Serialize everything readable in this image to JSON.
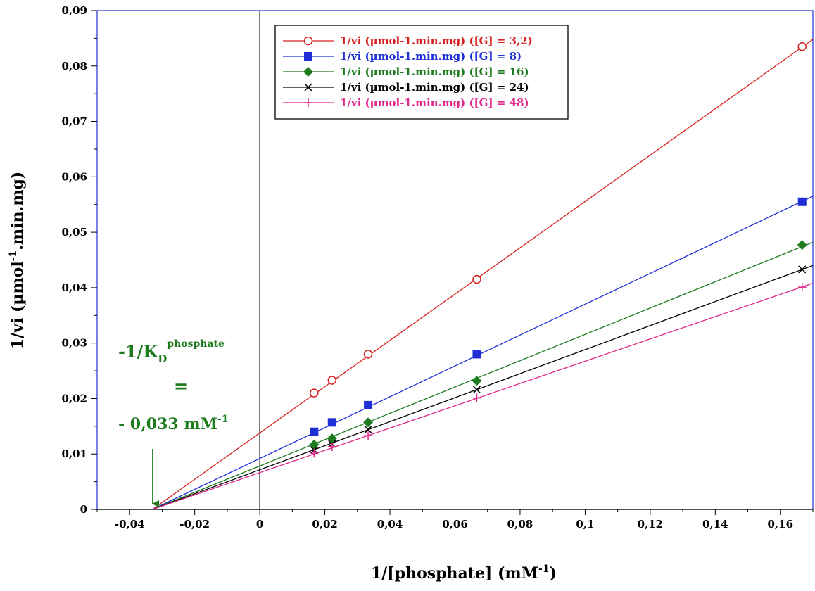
{
  "chart_data": {
    "type": "line",
    "xlabel": "1/[phosphate] (mM",
    "xlabel_sup": "-1",
    "xlabel_end": ")",
    "ylabel": "1/vi (µmol",
    "ylabel_sup": "-1",
    "ylabel_end": ".min.mg)",
    "xlim": [
      -0.05,
      0.17
    ],
    "ylim": [
      0,
      0.09
    ],
    "x_ticks": [
      -0.04,
      -0.02,
      0,
      0.02,
      0.04,
      0.06,
      0.08,
      0.1,
      0.12,
      0.14,
      0.16
    ],
    "x_tick_labels": [
      "-0,04",
      "-0,02",
      "0",
      "0,02",
      "0,04",
      "0,06",
      "0,08",
      "0,1",
      "0,12",
      "0,14",
      "0,16"
    ],
    "y_ticks": [
      0,
      0.01,
      0.02,
      0.03,
      0.04,
      0.05,
      0.06,
      0.07,
      0.08,
      0.09
    ],
    "y_tick_labels": [
      "0",
      "0,01",
      "0,02",
      "0,03",
      "0,04",
      "0,05",
      "0,06",
      "0,07",
      "0,08",
      "0,09"
    ],
    "grid": false,
    "legend_position": "top-left",
    "series": [
      {
        "name": "1/vi (µmol-1.min.mg) ([G] = 3,2)",
        "color": "#d62020",
        "marker": "open-circle",
        "x": [
          0.0167,
          0.0222,
          0.0333,
          0.0667,
          0.1667
        ],
        "y": [
          0.021,
          0.0233,
          0.028,
          0.0415,
          0.0835
        ],
        "fit_line": [
          [
            -0.033,
            0
          ],
          [
            0.17,
            0.0848
          ]
        ]
      },
      {
        "name": "1/vi (µmol-1.min.mg) ([G] = 8)",
        "color": "#1f2fd6",
        "marker": "filled-square",
        "x": [
          0.0167,
          0.0222,
          0.0333,
          0.0667,
          0.1667
        ],
        "y": [
          0.014,
          0.0157,
          0.0188,
          0.028,
          0.0555
        ],
        "fit_line": [
          [
            -0.033,
            0
          ],
          [
            0.17,
            0.0565
          ]
        ]
      },
      {
        "name": "1/vi (µmol-1.min.mg) ([G] = 16)",
        "color": "#1e7b1e",
        "marker": "filled-diamond",
        "x": [
          0.0167,
          0.0222,
          0.0333,
          0.0667,
          0.1667
        ],
        "y": [
          0.0117,
          0.0128,
          0.0157,
          0.0232,
          0.0477
        ],
        "fit_line": [
          [
            -0.033,
            0
          ],
          [
            0.17,
            0.0482
          ]
        ]
      },
      {
        "name": "1/vi (µmol-1.min.mg) ([G] = 24)",
        "color": "#000000",
        "marker": "x-cross",
        "x": [
          0.0167,
          0.0222,
          0.0333,
          0.0667,
          0.1667
        ],
        "y": [
          0.0107,
          0.0118,
          0.0144,
          0.0216,
          0.0433
        ],
        "fit_line": [
          [
            -0.033,
            0
          ],
          [
            0.17,
            0.044
          ]
        ]
      },
      {
        "name": "1/vi (µmol-1.min.mg) ([G] = 48)",
        "color": "#e0288a",
        "marker": "plus",
        "x": [
          0.0167,
          0.0222,
          0.0333,
          0.0667,
          0.1667
        ],
        "y": [
          0.0101,
          0.0113,
          0.0133,
          0.0201,
          0.0401
        ],
        "fit_line": [
          [
            -0.033,
            0
          ],
          [
            0.17,
            0.0408
          ]
        ]
      }
    ],
    "annotation": {
      "line1": "-1/K",
      "line1_sub": "D",
      "line1_sup": "phosphate",
      "line2": "=",
      "line3": "- 0,033 mM",
      "line3_sup": "-1",
      "arrow_to": [
        -0.033,
        0
      ],
      "color": "#1e7b1e"
    }
  }
}
